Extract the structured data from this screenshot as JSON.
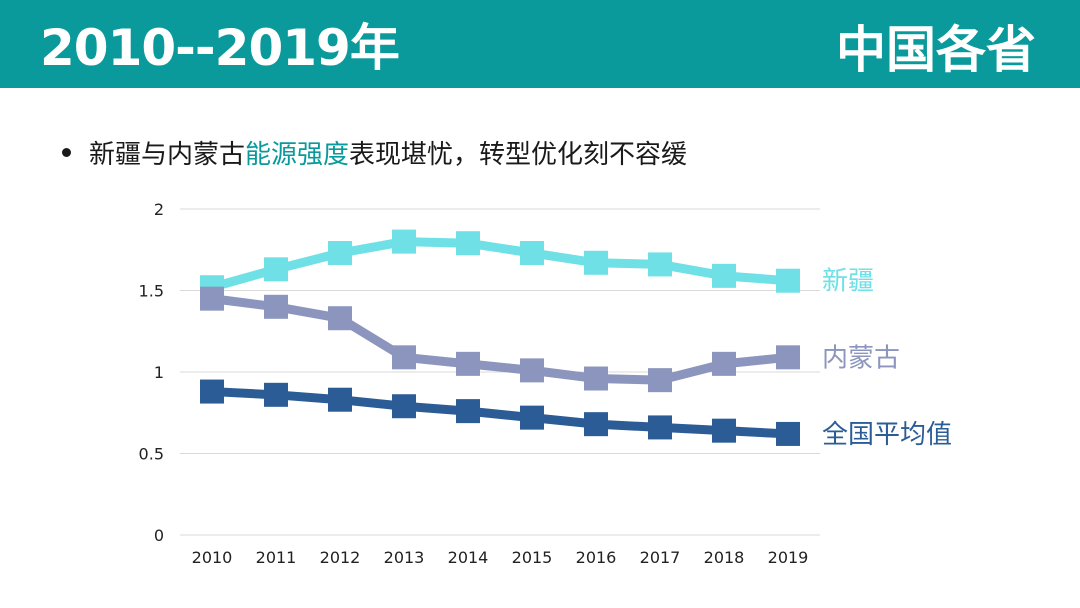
{
  "header": {
    "title_left": "2010--2019年",
    "title_right": "中国各省",
    "bg_color": "#0a9a9c"
  },
  "bullet": {
    "text_before": "新疆与内蒙古",
    "highlight": "能源强度",
    "text_after": "表现堪忧，转型优化刻不容缓"
  },
  "chart_data": {
    "type": "line",
    "categories": [
      "2010",
      "2011",
      "2012",
      "2013",
      "2014",
      "2015",
      "2016",
      "2017",
      "2018",
      "2019"
    ],
    "ylim": [
      0,
      2
    ],
    "yticks": [
      "0",
      "0.5",
      "1",
      "1.5",
      "2"
    ],
    "grid": true,
    "series": [
      {
        "name": "新疆",
        "color": "#6ee0e6",
        "values": [
          1.52,
          1.63,
          1.73,
          1.8,
          1.79,
          1.73,
          1.67,
          1.66,
          1.59,
          1.56
        ]
      },
      {
        "name": "内蒙古",
        "color": "#8b95bd",
        "values": [
          1.45,
          1.4,
          1.33,
          1.09,
          1.05,
          1.01,
          0.96,
          0.95,
          1.05,
          1.09
        ]
      },
      {
        "name": "全国平均值",
        "color": "#2b5c96",
        "values": [
          0.88,
          0.86,
          0.83,
          0.79,
          0.76,
          0.72,
          0.68,
          0.66,
          0.64,
          0.62
        ]
      }
    ]
  }
}
